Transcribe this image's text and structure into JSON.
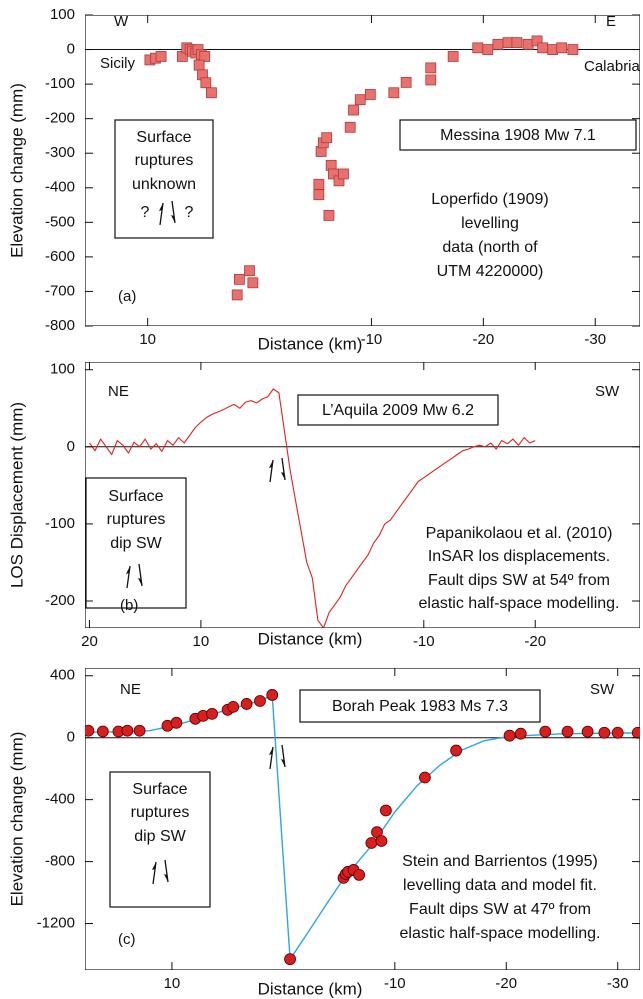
{
  "chart_data": [
    {
      "type": "scatter",
      "marker": "square",
      "color": "#e8706e",
      "edgecolor": "#b03c3a",
      "y_label": "Elevation change (mm)",
      "x_label": "Distance (km)",
      "xlim": [
        15.6,
        -34
      ],
      "ylim": [
        -800,
        100
      ],
      "xticks": [
        10,
        -10,
        -20,
        -30
      ],
      "yticks": [
        100,
        0,
        -100,
        -200,
        -300,
        -400,
        -500,
        -600,
        -700,
        -800
      ],
      "x": [
        9.8,
        9.3,
        8.8,
        6.9,
        6.5,
        6.2,
        6.0,
        5.7,
        5.5,
        5.2,
        4.9,
        5.4,
        5.1,
        4.8,
        4.3,
        2.0,
        1.8,
        0.9,
        0.6,
        -5.3,
        -5.3,
        -5.5,
        -5.7,
        -6.0,
        -6.2,
        -6.4,
        -6.6,
        -7.1,
        -7.5,
        -8.1,
        -8.4,
        -9.0,
        -9.9,
        -12.0,
        -13.1,
        -15.3,
        -15.3,
        -17.3,
        -19.5,
        -20.4,
        -21.3,
        -22.2,
        -23.0,
        -24.0,
        -24.8,
        -25.3,
        -26.2,
        -27.0,
        -28.0
      ],
      "values": [
        -30,
        -25,
        -20,
        -20,
        5,
        0,
        -5,
        -10,
        0,
        -15,
        -20,
        -45,
        -73,
        -96,
        -125,
        -710,
        -665,
        -640,
        -675,
        -390,
        -420,
        -295,
        -270,
        -255,
        -480,
        -335,
        -360,
        -380,
        -360,
        -225,
        -175,
        -145,
        -130,
        -125,
        -95,
        -88,
        -53,
        -20,
        5,
        0,
        15,
        20,
        20,
        15,
        25,
        5,
        0,
        5,
        0
      ],
      "direction_labels": [
        "W",
        "E"
      ],
      "place_labels": [
        "Sicily",
        "Calabria"
      ],
      "event_label": "Messina 1908 Mw 7.1",
      "rupture_note": [
        "Surface",
        "ruptures",
        "unknown"
      ],
      "uncertainty_marks": [
        "?",
        "?"
      ],
      "source_note": [
        "Loperfido (1909)",
        "levelling",
        "data (north of",
        "UTM 4220000)"
      ],
      "panel_label": "(a)"
    },
    {
      "type": "line",
      "color": "#e02020",
      "y_label": "LOS Displacement (mm)",
      "x_label": "Distance (km)",
      "xlim": [
        20.4,
        -29.4
      ],
      "ylim": [
        -235,
        110
      ],
      "xticks": [
        20,
        10,
        -10,
        -20
      ],
      "yticks": [
        100,
        0,
        -100,
        -200
      ],
      "x": [
        20,
        19.5,
        19,
        18.5,
        18,
        17.5,
        17,
        16.5,
        16,
        15.5,
        15,
        14.5,
        14,
        13.5,
        13,
        12.5,
        12,
        11.5,
        11,
        10.5,
        10,
        9.5,
        9,
        8.5,
        8,
        7.5,
        7,
        6.5,
        6,
        5.5,
        5,
        4.5,
        4,
        3.5,
        3,
        2.5,
        2,
        1.5,
        1,
        0.5,
        0,
        -0.5,
        -1,
        -1.5,
        -2,
        -2.5,
        -3,
        -3.5,
        -4,
        -4.5,
        -5,
        -5.5,
        -6,
        -6.5,
        -7,
        -7.5,
        -8,
        -8.5,
        -9,
        -9.5,
        -10,
        -10.5,
        -11,
        -11.5,
        -12,
        -12.5,
        -13,
        -13.5,
        -14,
        -14.5,
        -15,
        -15.5,
        -16,
        -16.5,
        -17,
        -17.5,
        -18,
        -18.5,
        -19,
        -19.5,
        -20
      ],
      "values": [
        5,
        -5,
        10,
        0,
        -10,
        8,
        2,
        -8,
        6,
        0,
        10,
        -3,
        4,
        -6,
        8,
        2,
        12,
        5,
        15,
        25,
        32,
        38,
        42,
        45,
        48,
        52,
        55,
        50,
        58,
        60,
        57,
        62,
        65,
        75,
        70,
        20,
        -30,
        -70,
        -110,
        -150,
        -170,
        -225,
        -235,
        -215,
        -205,
        -195,
        -180,
        -170,
        -160,
        -150,
        -140,
        -125,
        -115,
        -100,
        -95,
        -85,
        -75,
        -65,
        -55,
        -45,
        -40,
        -35,
        -30,
        -25,
        -20,
        -15,
        -10,
        -5,
        -3,
        0,
        2,
        0,
        5,
        -3,
        8,
        4,
        10,
        2,
        12,
        5,
        8
      ],
      "direction_labels": [
        "NE",
        "SW"
      ],
      "event_label": "L’Aquila 2009 Mw 6.2",
      "rupture_note": [
        "Surface",
        "ruptures",
        "dip SW"
      ],
      "source_note": [
        "Papanikolaou et al. (2010)",
        "InSAR los displacements.",
        "Fault dips SW at 54º from",
        "elastic half-space modelling."
      ],
      "panel_label": "(b)"
    },
    {
      "type": "scatter",
      "marker": "circle",
      "color": "#d81e1e",
      "edgecolor": "#5a0000",
      "y_label": "Elevation change (mm)",
      "x_label": "Distance (km)",
      "xlim": [
        17.8,
        -32
      ],
      "ylim": [
        -1500,
        450
      ],
      "xticks": [
        10,
        -10,
        -20,
        -30
      ],
      "yticks": [
        400,
        0,
        -400,
        -800,
        -1200
      ],
      "x": [
        17.5,
        16.2,
        14.8,
        14.0,
        12.9,
        10.4,
        9.6,
        7.9,
        7.2,
        6.4,
        5.0,
        4.5,
        3.3,
        2.1,
        1.0,
        -0.6,
        -5.4,
        -5.6,
        -5.8,
        -6.3,
        -6.8,
        -7.9,
        -8.4,
        -8.8,
        -9.2,
        -12.7,
        -15.5,
        -20.3,
        -21.3,
        -23.5,
        -25.5,
        -27.3,
        -28.8,
        -30.0,
        -31.8
      ],
      "values": [
        45,
        40,
        40,
        45,
        45,
        77,
        96,
        122,
        141,
        154,
        180,
        199,
        218,
        237,
        276,
        -1430,
        -905,
        -880,
        -866,
        -854,
        -886,
        -680,
        -610,
        -667,
        -470,
        -257,
        -83,
        13,
        26,
        39,
        39,
        39,
        32,
        32,
        32
      ],
      "model": {
        "color": "#29a9e0",
        "x": [
          17.8,
          15,
          12,
          10,
          8,
          6,
          4,
          2,
          1,
          -0.6,
          -2,
          -4,
          -5.5,
          -6,
          -8,
          -10,
          -12,
          -14,
          -16,
          -18,
          -20,
          -22,
          -25,
          -30,
          -32
        ],
        "values": [
          35,
          38,
          45,
          75,
          115,
          160,
          200,
          240,
          276,
          -1430,
          -1280,
          -1060,
          -900,
          -860,
          -690,
          -480,
          -310,
          -180,
          -80,
          -20,
          5,
          15,
          25,
          30,
          30
        ]
      },
      "direction_labels": [
        "NE",
        "SW"
      ],
      "event_label": "Borah Peak 1983 Ms 7.3",
      "rupture_note": [
        "Surface",
        "ruptures",
        "dip SW"
      ],
      "source_note": [
        "Stein and Barrientos (1995)",
        "levelling data and model fit.",
        "Fault dips SW at 47º  from",
        "elastic half-space modelling."
      ],
      "panel_label": "(c)"
    }
  ]
}
